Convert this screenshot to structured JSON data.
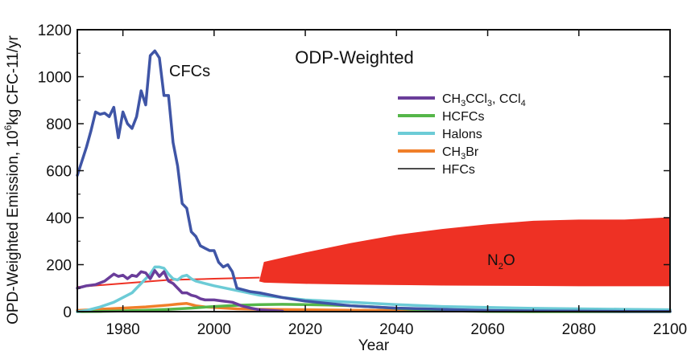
{
  "chart_data": {
    "type": "line",
    "title": "ODP-Weighted",
    "xlabel": "Year",
    "ylabel": "OPD-Weighted Emission, 10",
    "ylabel_sup": "6",
    "ylabel_rest": "kg CFC-11/yr",
    "xlim": [
      1970,
      2100
    ],
    "ylim": [
      0,
      1200
    ],
    "xticks": [
      1980,
      2000,
      2020,
      2040,
      2060,
      2080,
      2100
    ],
    "yticks": [
      0,
      200,
      400,
      600,
      800,
      1000,
      1200
    ],
    "grid": false,
    "legend_position": "right",
    "annotations": {
      "cfcs": "CFCs",
      "n2o_main": "N",
      "n2o_sub": "2",
      "n2o_end": "O"
    },
    "series": [
      {
        "name": "CFCs",
        "color": "#3f55a6",
        "x": [
          1970,
          1972,
          1973,
          1974,
          1975,
          1976,
          1977,
          1978,
          1979,
          1980,
          1981,
          1982,
          1983,
          1984,
          1985,
          1986,
          1987,
          1988,
          1989,
          1990,
          1991,
          1992,
          1993,
          1994,
          1995,
          1996,
          1997,
          1998,
          1999,
          2000,
          2001,
          2002,
          2003,
          2004,
          2005,
          2006,
          2008,
          2010,
          2015,
          2020,
          2030,
          2040,
          2050,
          2060,
          2070,
          2080,
          2090,
          2100
        ],
        "y": [
          580,
          700,
          770,
          850,
          840,
          845,
          830,
          870,
          740,
          850,
          800,
          780,
          830,
          940,
          880,
          1090,
          1110,
          1080,
          920,
          920,
          720,
          620,
          460,
          440,
          340,
          320,
          280,
          270,
          260,
          260,
          210,
          190,
          200,
          170,
          100,
          95,
          85,
          80,
          60,
          45,
          25,
          15,
          10,
          5,
          3,
          2,
          1,
          1
        ]
      },
      {
        "name": "CH3CCl3, CCl4",
        "label_parts": [
          "CH",
          "3",
          "CCl",
          "3",
          ", CCl",
          "4"
        ],
        "color": "#6a3d9a",
        "x": [
          1970,
          1972,
          1974,
          1976,
          1978,
          1979,
          1980,
          1981,
          1982,
          1983,
          1984,
          1985,
          1986,
          1987,
          1988,
          1989,
          1990,
          1991,
          1992,
          1993,
          1994,
          1995,
          1996,
          1997,
          1998,
          1999,
          2000,
          2002,
          2004,
          2006,
          2008,
          2010,
          2015
        ],
        "y": [
          100,
          110,
          115,
          130,
          160,
          150,
          155,
          140,
          155,
          150,
          170,
          165,
          140,
          175,
          150,
          170,
          130,
          120,
          100,
          80,
          80,
          70,
          65,
          55,
          50,
          50,
          50,
          45,
          40,
          25,
          15,
          8,
          2
        ]
      },
      {
        "name": "HCFCs",
        "color": "#55b649",
        "x": [
          1970,
          1975,
          1980,
          1985,
          1990,
          1995,
          2000,
          2005,
          2010,
          2015,
          2020,
          2025,
          2030,
          2035,
          2040,
          2045,
          2050,
          2060,
          2070,
          2080,
          2090,
          2100
        ],
        "y": [
          0,
          1,
          3,
          6,
          10,
          15,
          22,
          27,
          30,
          31,
          30,
          28,
          25,
          20,
          14,
          8,
          4,
          1,
          0,
          0,
          0,
          0
        ]
      },
      {
        "name": "Halons",
        "color": "#6ccbd6",
        "x": [
          1970,
          1972,
          1975,
          1978,
          1980,
          1982,
          1984,
          1986,
          1987,
          1988,
          1989,
          1990,
          1991,
          1992,
          1993,
          1994,
          1995,
          1996,
          1998,
          2000,
          2005,
          2010,
          2020,
          2030,
          2040,
          2050,
          2060,
          2070,
          2080,
          2090,
          2100
        ],
        "y": [
          0,
          5,
          20,
          40,
          60,
          80,
          120,
          160,
          190,
          190,
          185,
          160,
          140,
          135,
          150,
          155,
          140,
          130,
          120,
          110,
          90,
          70,
          50,
          40,
          30,
          22,
          18,
          14,
          12,
          10,
          8
        ]
      },
      {
        "name": "CH3Br",
        "label_parts": [
          "CH",
          "3",
          "Br"
        ],
        "color": "#f07f2a",
        "x": [
          1970,
          1975,
          1980,
          1985,
          1990,
          1992,
          1994,
          1995,
          1996,
          1998,
          2000,
          2005,
          2010,
          2020,
          2030,
          2040,
          2050,
          2060,
          2080,
          2100
        ],
        "y": [
          5,
          10,
          15,
          20,
          28,
          32,
          35,
          30,
          25,
          20,
          18,
          12,
          10,
          8,
          6,
          5,
          4,
          4,
          3,
          3
        ]
      },
      {
        "name": "HFCs",
        "color": "#111111",
        "x": [
          1970,
          2100
        ],
        "y": [
          0,
          0
        ]
      }
    ],
    "n2o": {
      "name": "N2O",
      "color": "#ee3124",
      "history_x": [
        1970,
        1980,
        1990,
        2000,
        2010
      ],
      "history_y": [
        105,
        120,
        135,
        140,
        145
      ],
      "band_x": [
        2010,
        2011,
        2020,
        2030,
        2040,
        2050,
        2060,
        2070,
        2080,
        2090,
        2100
      ],
      "band_upper": [
        130,
        210,
        250,
        290,
        325,
        350,
        370,
        385,
        390,
        390,
        400
      ],
      "band_lower": [
        130,
        125,
        120,
        117,
        115,
        113,
        112,
        111,
        110,
        110,
        110
      ]
    }
  }
}
